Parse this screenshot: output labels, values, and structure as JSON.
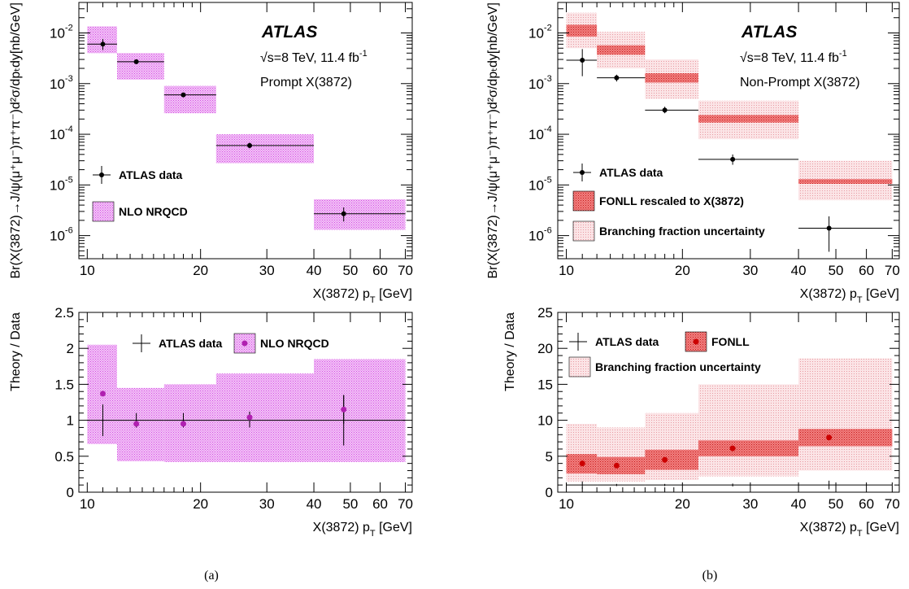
{
  "chart_data": [
    {
      "id": "a_main",
      "type": "scatter",
      "log_y": true,
      "log_x": true,
      "xlim": [
        9.5,
        73
      ],
      "ylim": [
        3.5e-07,
        0.04
      ],
      "xlabel": "X(3872) p",
      "xlabel_sub": "T",
      "xlabel_unit": " [GeV]",
      "ylabel": "Br(X(3872)→J/ψ(μ⁺μ⁻)π⁺π⁻)d²σ/dpₜdy[nb/GeV]",
      "x_ticks": [
        10,
        20,
        30,
        40,
        50,
        60,
        70
      ],
      "x_tick_labels": [
        "10",
        "20",
        "30",
        "40",
        "50",
        "60",
        "70"
      ],
      "y_ticks": [
        1e-06,
        1e-05,
        0.0001,
        0.001,
        0.01
      ],
      "y_tick_labels": [
        [
          "10",
          "-6"
        ],
        [
          "10",
          "-5"
        ],
        [
          "10",
          "-4"
        ],
        [
          "10",
          "-3"
        ],
        [
          "10",
          "-2"
        ]
      ],
      "annotation_atlas": "ATLAS",
      "annotation_energy": "√s=8 TeV, 11.4 fb",
      "annotation_energy_sup": "-1",
      "annotation_sample": "Prompt X(3872)",
      "data": {
        "name": "ATLAS data",
        "x": [
          11,
          13.5,
          18,
          27,
          48
        ],
        "xerr": [
          [
            10,
            12
          ],
          [
            12,
            16
          ],
          [
            16,
            22
          ],
          [
            22,
            40
          ],
          [
            40,
            70
          ]
        ],
        "y": [
          0.006,
          0.0027,
          0.0006,
          6e-05,
          2.7e-06
        ],
        "yerr": [
          [
            0.0046,
            0.0076
          ],
          [
            0.00245,
            0.00295
          ],
          [
            0.00054,
            0.00066
          ],
          [
            5.3e-05,
            6.8e-05
          ],
          [
            1.9e-06,
            3.6e-06
          ]
        ]
      },
      "bands": [
        {
          "name": "NLO NRQCD",
          "x": [
            [
              10,
              12
            ],
            [
              12,
              16
            ],
            [
              16,
              22
            ],
            [
              22,
              40
            ],
            [
              40,
              70
            ]
          ],
          "low": [
            0.004,
            0.0012,
            0.00026,
            2.7e-05,
            1.3e-06
          ],
          "high": [
            0.0135,
            0.004,
            0.0009,
            0.0001,
            5.2e-06
          ]
        }
      ],
      "legend": [
        "ATLAS data",
        "NLO NRQCD"
      ]
    },
    {
      "id": "b_main",
      "type": "scatter",
      "log_y": true,
      "log_x": true,
      "xlim": [
        9.5,
        73
      ],
      "ylim": [
        3.5e-07,
        0.04
      ],
      "xlabel": "X(3872) p",
      "xlabel_sub": "T",
      "xlabel_unit": " [GeV]",
      "ylabel": "Br(X(3872)→J/ψ(μ⁺μ⁻)π⁺π⁻)d²σ/dpₜdy[nb/GeV]",
      "x_ticks": [
        10,
        20,
        30,
        40,
        50,
        60,
        70
      ],
      "x_tick_labels": [
        "10",
        "20",
        "30",
        "40",
        "50",
        "60",
        "70"
      ],
      "y_ticks": [
        1e-06,
        1e-05,
        0.0001,
        0.001,
        0.01
      ],
      "y_tick_labels": [
        [
          "10",
          "-6"
        ],
        [
          "10",
          "-5"
        ],
        [
          "10",
          "-4"
        ],
        [
          "10",
          "-3"
        ],
        [
          "10",
          "-2"
        ]
      ],
      "annotation_atlas": "ATLAS",
      "annotation_energy": "√s=8 TeV, 11.4 fb",
      "annotation_energy_sup": "-1",
      "annotation_sample": "Non-Prompt X(3872)",
      "data": {
        "name": "ATLAS data",
        "x": [
          11,
          13.5,
          18,
          27,
          48
        ],
        "xerr": [
          [
            10,
            12
          ],
          [
            12,
            16
          ],
          [
            16,
            22
          ],
          [
            22,
            40
          ],
          [
            40,
            70
          ]
        ],
        "y": [
          0.0029,
          0.0013,
          0.0003,
          3.2e-05,
          1.4e-06
        ],
        "yerr": [
          [
            0.0014,
            0.0048
          ],
          [
            0.0011,
            0.0015
          ],
          [
            0.00026,
            0.00035
          ],
          [
            2.5e-05,
            4e-05
          ],
          [
            4.8e-07,
            2.4e-06
          ]
        ]
      },
      "bands": [
        {
          "name": "Branching fraction uncertainty",
          "x": [
            [
              10,
              12
            ],
            [
              12,
              16
            ],
            [
              16,
              22
            ],
            [
              22,
              40
            ],
            [
              40,
              70
            ]
          ],
          "low": [
            0.005,
            0.002,
            0.0005,
            8e-05,
            5e-06
          ],
          "high": [
            0.025,
            0.0105,
            0.003,
            0.00046,
            3e-05
          ]
        },
        {
          "name": "FONLL rescaled to X(3872)",
          "x": [
            [
              10,
              12
            ],
            [
              12,
              16
            ],
            [
              16,
              22
            ],
            [
              22,
              40
            ],
            [
              40,
              70
            ]
          ],
          "low": [
            0.0085,
            0.0037,
            0.00105,
            0.00017,
            1.05e-05
          ],
          "high": [
            0.0145,
            0.0057,
            0.0016,
            0.00024,
            1.3e-05
          ]
        }
      ],
      "legend": [
        "ATLAS data",
        "FONLL rescaled to X(3872)",
        "Branching fraction uncertainty"
      ]
    },
    {
      "id": "a_ratio",
      "type": "scatter",
      "log_x": true,
      "xlim": [
        9.5,
        73
      ],
      "ylim": [
        0,
        2.5
      ],
      "xlabel": "X(3872) p",
      "xlabel_sub": "T",
      "xlabel_unit": " [GeV]",
      "ylabel": "Theory / Data",
      "x_ticks": [
        10,
        20,
        30,
        40,
        50,
        60,
        70
      ],
      "x_tick_labels": [
        "10",
        "20",
        "30",
        "40",
        "50",
        "60",
        "70"
      ],
      "y_ticks": [
        0,
        0.5,
        1,
        1.5,
        2,
        2.5
      ],
      "y_tick_labels": [
        "0",
        "0.5",
        "1",
        "1.5",
        "2",
        "2.5"
      ],
      "data": {
        "name": "ATLAS data",
        "x": [
          11,
          13.5,
          18,
          27,
          48
        ],
        "xerr": [
          [
            10,
            12
          ],
          [
            12,
            16
          ],
          [
            16,
            22
          ],
          [
            22,
            40
          ],
          [
            40,
            70
          ]
        ],
        "y": [
          1,
          1,
          1,
          1,
          1
        ],
        "yerr": [
          [
            0.78,
            1.22
          ],
          [
            0.9,
            1.1
          ],
          [
            0.9,
            1.1
          ],
          [
            0.9,
            1.1
          ],
          [
            0.65,
            1.35
          ]
        ]
      },
      "theory": {
        "name": "NLO NRQCD",
        "x": [
          11,
          13.5,
          18,
          27,
          48
        ],
        "y": [
          1.37,
          0.95,
          0.95,
          1.04,
          1.15
        ],
        "yerr": [
          [
            1.37,
            1.37
          ],
          [
            0.95,
            0.95
          ],
          [
            0.95,
            0.95
          ],
          [
            0.96,
            1.12
          ],
          [
            0.95,
            1.35
          ]
        ]
      },
      "bands": [
        {
          "name": "NLO NRQCD",
          "x": [
            [
              10,
              12
            ],
            [
              12,
              16
            ],
            [
              16,
              22
            ],
            [
              22,
              40
            ],
            [
              40,
              70
            ]
          ],
          "low": [
            0.67,
            0.43,
            0.42,
            0.42,
            0.42
          ],
          "high": [
            2.05,
            1.45,
            1.5,
            1.65,
            1.85
          ]
        }
      ],
      "legend": [
        "ATLAS data",
        "NLO NRQCD"
      ]
    },
    {
      "id": "b_ratio",
      "type": "scatter",
      "log_x": true,
      "xlim": [
        9.5,
        73
      ],
      "ylim": [
        0,
        25
      ],
      "xlabel": "X(3872) p",
      "xlabel_sub": "T",
      "xlabel_unit": " [GeV]",
      "ylabel": "Theory / Data",
      "x_ticks": [
        10,
        20,
        30,
        40,
        50,
        60,
        70
      ],
      "x_tick_labels": [
        "10",
        "20",
        "30",
        "40",
        "50",
        "60",
        "70"
      ],
      "y_ticks": [
        0,
        5,
        10,
        15,
        20,
        25
      ],
      "y_tick_labels": [
        "0",
        "5",
        "10",
        "15",
        "20",
        "25"
      ],
      "data": {
        "name": "ATLAS data",
        "x": [
          11,
          13.5,
          18,
          27,
          48
        ],
        "xerr": [
          [
            10,
            12
          ],
          [
            12,
            16
          ],
          [
            16,
            22
          ],
          [
            22,
            40
          ],
          [
            40,
            70
          ]
        ],
        "y": [
          1,
          1,
          1,
          1,
          1
        ],
        "yerr": [
          [
            0.5,
            1.5
          ],
          [
            0.85,
            1.15
          ],
          [
            0.85,
            1.15
          ],
          [
            0.8,
            1.2
          ],
          [
            0.4,
            1.6
          ]
        ]
      },
      "theory": {
        "name": "FONLL",
        "x": [
          11,
          13.5,
          18,
          27,
          48
        ],
        "y": [
          4.0,
          3.7,
          4.5,
          6.1,
          7.6
        ],
        "yerr": [
          [
            4.0,
            4.0
          ],
          [
            3.7,
            3.7
          ],
          [
            4.5,
            4.5
          ],
          [
            6.1,
            6.1
          ],
          [
            7.6,
            7.6
          ]
        ]
      },
      "bands": [
        {
          "name": "Branching fraction uncertainty",
          "x": [
            [
              10,
              12
            ],
            [
              12,
              16
            ],
            [
              16,
              22
            ],
            [
              22,
              40
            ],
            [
              40,
              70
            ]
          ],
          "low": [
            1.5,
            1.5,
            1.7,
            2.2,
            3.0
          ],
          "high": [
            9.5,
            9.0,
            11.0,
            15.0,
            18.6
          ]
        },
        {
          "name": "FONLL",
          "x": [
            [
              10,
              12
            ],
            [
              12,
              16
            ],
            [
              16,
              22
            ],
            [
              22,
              40
            ],
            [
              40,
              70
            ]
          ],
          "low": [
            2.6,
            2.5,
            3.1,
            5.0,
            6.4
          ],
          "high": [
            5.3,
            4.9,
            5.9,
            7.2,
            8.8
          ]
        }
      ],
      "legend": [
        "ATLAS data",
        "FONLL",
        "Branching fraction uncertainty"
      ]
    }
  ],
  "captions": [
    "(a)",
    "(b)"
  ],
  "colors": {
    "magenta_band": "#e070e8",
    "magenta_marker": "#b020b0",
    "red_band": "#e04040",
    "red_marker": "#cc0000",
    "pink_band": "#f0a0a8",
    "data": "#000000"
  }
}
